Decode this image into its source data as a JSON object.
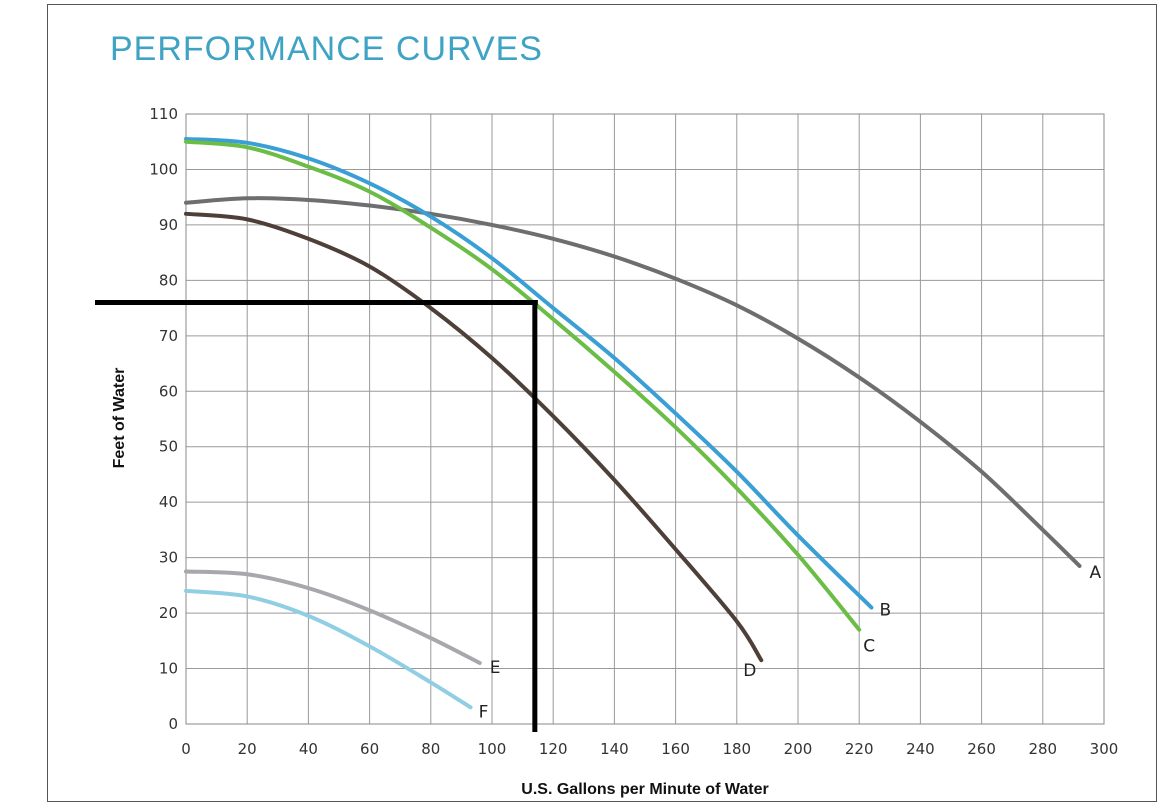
{
  "chart_data": {
    "type": "line",
    "title": "PERFORMANCE CURVES",
    "xlabel": "U.S. Gallons per Minute of Water",
    "ylabel": "Feet of Water",
    "xlim": [
      0,
      300
    ],
    "ylim": [
      0,
      110
    ],
    "x_ticks": [
      0,
      20,
      40,
      60,
      80,
      100,
      120,
      140,
      160,
      180,
      200,
      220,
      240,
      260,
      280,
      300
    ],
    "y_ticks": [
      0,
      10,
      20,
      30,
      40,
      50,
      60,
      70,
      80,
      90,
      100,
      110
    ],
    "grid": true,
    "series": [
      {
        "name": "A",
        "color": "#6d6e70",
        "x": [
          0,
          20,
          40,
          60,
          80,
          100,
          120,
          140,
          160,
          180,
          200,
          220,
          240,
          260,
          280,
          292
        ],
        "y": [
          94,
          94.8,
          94.5,
          93.5,
          92,
          90,
          87.5,
          84.3,
          80.3,
          75.5,
          69.5,
          62.5,
          54.5,
          45.5,
          35,
          28.5
        ]
      },
      {
        "name": "B",
        "color": "#3a9fd4",
        "x": [
          0,
          20,
          40,
          60,
          80,
          100,
          120,
          140,
          160,
          180,
          200,
          224
        ],
        "y": [
          105.5,
          104.8,
          102,
          97.5,
          91.5,
          84,
          75,
          66,
          56,
          45.5,
          34,
          21
        ]
      },
      {
        "name": "C",
        "color": "#6cbd45",
        "x": [
          0,
          20,
          40,
          60,
          80,
          100,
          120,
          140,
          160,
          180,
          200,
          220
        ],
        "y": [
          105,
          104,
          100.5,
          96,
          89.5,
          82,
          73,
          63.5,
          53.5,
          42.5,
          30.5,
          17
        ]
      },
      {
        "name": "D",
        "color": "#4e3f39",
        "x": [
          0,
          20,
          40,
          60,
          80,
          100,
          120,
          140,
          160,
          180,
          188
        ],
        "y": [
          92,
          91,
          87.5,
          82.5,
          75,
          66,
          55.5,
          44,
          31.5,
          18.5,
          11.5
        ]
      },
      {
        "name": "E",
        "color": "#a6a8ab",
        "x": [
          0,
          20,
          40,
          60,
          80,
          96
        ],
        "y": [
          27.5,
          27,
          24.5,
          20.5,
          15.5,
          11
        ]
      },
      {
        "name": "F",
        "color": "#90cfe3",
        "x": [
          0,
          20,
          40,
          60,
          80,
          93
        ],
        "y": [
          24,
          23,
          19.5,
          14,
          7.5,
          3
        ]
      }
    ],
    "annotations": [
      {
        "type": "operating-point-lines",
        "color": "#000000",
        "x": 114,
        "y": 76
      }
    ]
  }
}
